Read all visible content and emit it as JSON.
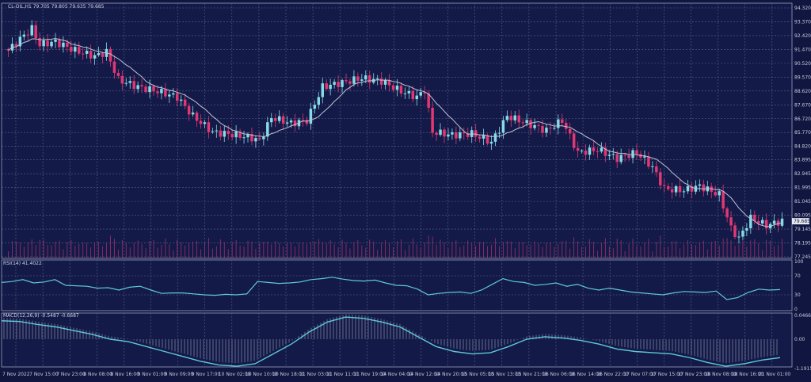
{
  "chart_data": {
    "type": "candlestick",
    "symbol_line": "CL-OIL,H1  79.705 79.805 79.635 79.685",
    "current_price": "79.685",
    "colors": {
      "background": "#131a47",
      "up": "#86dbe8",
      "down": "#e23773",
      "ma": "#bfc3d6",
      "indicator": "#5fc8d8",
      "grid": "#5a6190"
    },
    "price_axis": [
      "94.320",
      "93.370",
      "92.420",
      "91.470",
      "90.520",
      "89.570",
      "88.620",
      "87.670",
      "86.720",
      "85.770",
      "84.820",
      "83.895",
      "82.945",
      "81.995",
      "81.045",
      "80.095",
      "79.145",
      "78.195",
      "77.245"
    ],
    "ylim": [
      77.245,
      94.32
    ],
    "price_path": [
      [
        0,
        91.4
      ],
      [
        3,
        92.2
      ],
      [
        6,
        92.9
      ],
      [
        8,
        91.8
      ],
      [
        12,
        92.0
      ],
      [
        17,
        91.4
      ],
      [
        22,
        91.0
      ],
      [
        25,
        91.3
      ],
      [
        28,
        89.4
      ],
      [
        33,
        88.9
      ],
      [
        38,
        88.6
      ],
      [
        43,
        88.2
      ],
      [
        47,
        86.9
      ],
      [
        52,
        85.8
      ],
      [
        58,
        85.6
      ],
      [
        62,
        85.4
      ],
      [
        64,
        85.2
      ],
      [
        67,
        86.8
      ],
      [
        72,
        86.4
      ],
      [
        76,
        86.6
      ],
      [
        80,
        88.9
      ],
      [
        85,
        89.2
      ],
      [
        90,
        89.5
      ],
      [
        95,
        89.3
      ],
      [
        100,
        88.6
      ],
      [
        104,
        88.2
      ],
      [
        106,
        88.7
      ],
      [
        108,
        85.8
      ],
      [
        113,
        85.6
      ],
      [
        118,
        85.7
      ],
      [
        123,
        85.1
      ],
      [
        127,
        86.9
      ],
      [
        132,
        86.4
      ],
      [
        137,
        85.9
      ],
      [
        141,
        86.6
      ],
      [
        145,
        84.4
      ],
      [
        150,
        84.6
      ],
      [
        155,
        84.0
      ],
      [
        160,
        84.4
      ],
      [
        164,
        83.4
      ],
      [
        167,
        81.9
      ],
      [
        172,
        81.8
      ],
      [
        176,
        82.1
      ],
      [
        181,
        81.5
      ],
      [
        184,
        79.2
      ],
      [
        186,
        78.5
      ],
      [
        189,
        79.9
      ],
      [
        193,
        79.4
      ],
      [
        197,
        79.7
      ]
    ],
    "rsi": {
      "label": "RSI(14) 41.4022",
      "axis": [
        "100",
        "70",
        "30",
        "0"
      ],
      "values": [
        56,
        58,
        62,
        55,
        57,
        62,
        50,
        49,
        48,
        44,
        45,
        40,
        46,
        48,
        40,
        33,
        34,
        34,
        32,
        30,
        29,
        31,
        30,
        32,
        58,
        56,
        54,
        55,
        57,
        62,
        64,
        67,
        63,
        60,
        59,
        61,
        55,
        50,
        49,
        42,
        30,
        33,
        35,
        36,
        33,
        40,
        52,
        64,
        58,
        56,
        50,
        52,
        55,
        48,
        52,
        44,
        40,
        44,
        40,
        36,
        34,
        32,
        30,
        34,
        37,
        36,
        35,
        38,
        20,
        24,
        35,
        42,
        40,
        41
      ]
    },
    "macd": {
      "label": "MACD(12,26,9) -0.5487 -0.6687",
      "axis": [
        "0.0466",
        "0.00",
        "-1.1915"
      ],
      "values": [
        0.75,
        0.72,
        0.6,
        0.5,
        0.35,
        0.2,
        0.0,
        -0.1,
        -0.3,
        -0.5,
        -0.7,
        -0.9,
        -1.05,
        -1.1,
        -1.0,
        -0.6,
        -0.2,
        0.3,
        0.7,
        0.9,
        0.85,
        0.7,
        0.5,
        0.1,
        -0.3,
        -0.5,
        -0.6,
        -0.55,
        -0.3,
        0.0,
        0.1,
        0.05,
        -0.05,
        -0.2,
        -0.4,
        -0.5,
        -0.55,
        -0.6,
        -0.75,
        -0.95,
        -1.1,
        -1.0,
        -0.85,
        -0.75
      ]
    },
    "time_axis": [
      "7 Nov 2022",
      "7 Nov 15:00",
      "7 Nov 23:00",
      "8 Nov 08:00",
      "8 Nov 16:00",
      "9 Nov 01:00",
      "9 Nov 09:00",
      "9 Nov 17:00",
      "10 Nov 02:00",
      "10 Nov 10:00",
      "10 Nov 18:00",
      "11 Nov 03:00",
      "11 Nov 11:00",
      "11 Nov 19:00",
      "14 Nov 04:00",
      "14 Nov 12:00",
      "14 Nov 20:00",
      "15 Nov 05:00",
      "15 Nov 13:00",
      "15 Nov 21:00",
      "16 Nov 06:00",
      "16 Nov 14:00",
      "16 Nov 22:00",
      "17 Nov 07:00",
      "17 Nov 15:00",
      "17 Nov 23:00",
      "18 Nov 08:00",
      "18 Nov 16:00",
      "21 Nov 01:00"
    ]
  }
}
